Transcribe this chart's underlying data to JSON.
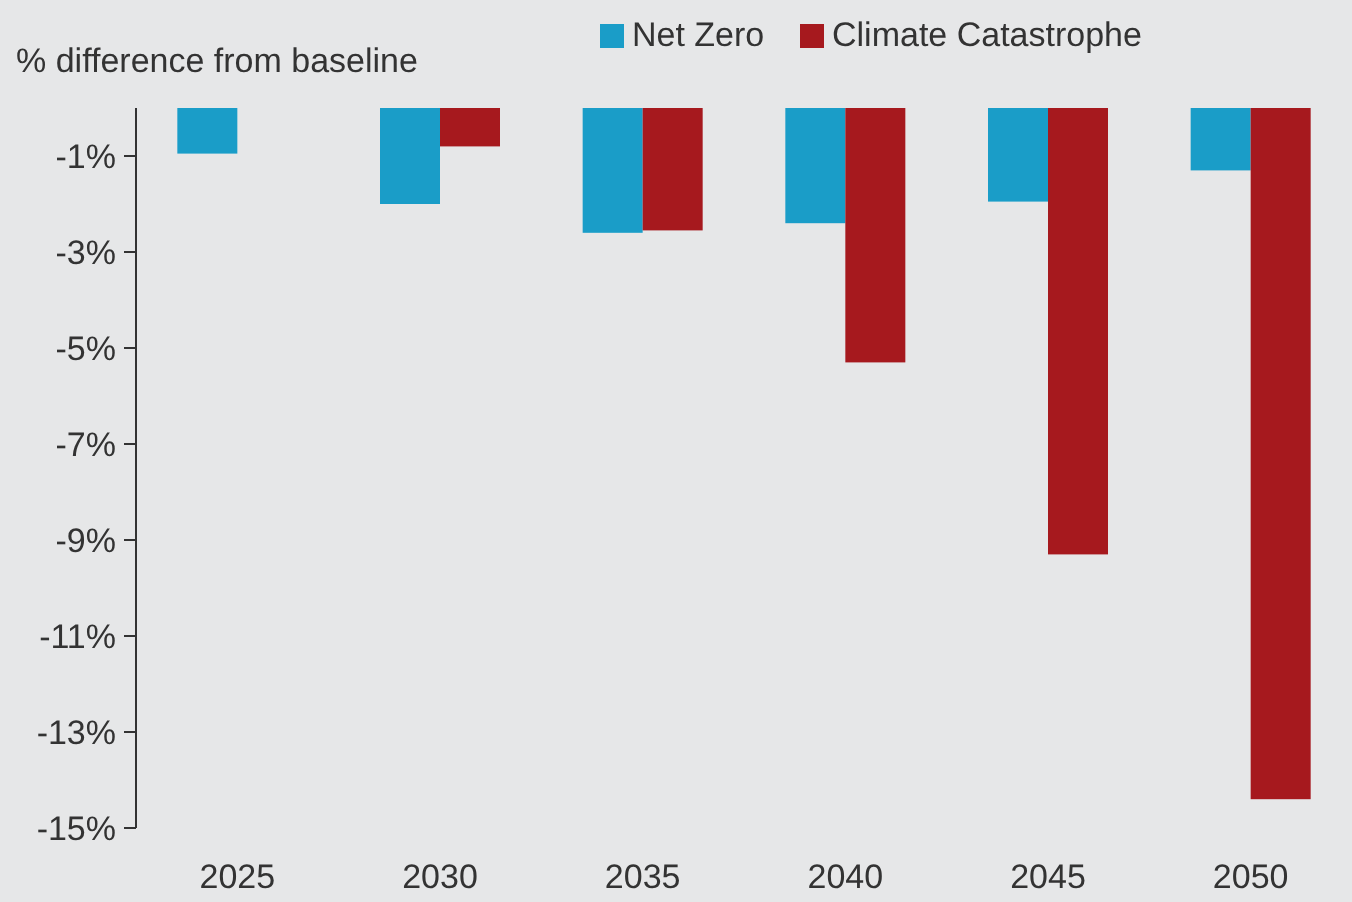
{
  "chart_data": {
    "type": "bar",
    "ylabel": "% difference from baseline",
    "categories": [
      "2025",
      "2030",
      "2035",
      "2040",
      "2045",
      "2050"
    ],
    "series": [
      {
        "name": "Net Zero",
        "color": "#1a9dc8",
        "values": [
          -0.95,
          -2.0,
          -2.6,
          -2.4,
          -1.95,
          -1.3
        ]
      },
      {
        "name": "Climate Catastrophe",
        "color": "#a6191e",
        "values": [
          null,
          -0.8,
          -2.55,
          -5.3,
          -9.3,
          -14.4
        ]
      }
    ],
    "ylim": [
      -15,
      0
    ],
    "yticks": [
      {
        "value": -1,
        "label": "-1%"
      },
      {
        "value": -3,
        "label": "-3%"
      },
      {
        "value": -5,
        "label": "-5%"
      },
      {
        "value": -7,
        "label": "-7%"
      },
      {
        "value": -9,
        "label": "-9%"
      },
      {
        "value": -11,
        "label": "-11%"
      },
      {
        "value": -13,
        "label": "-13%"
      },
      {
        "value": -15,
        "label": "-15%"
      }
    ],
    "legend": "top right"
  }
}
